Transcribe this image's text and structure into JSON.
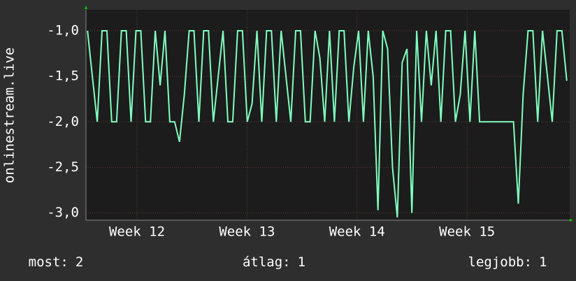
{
  "chart_data": {
    "type": "line",
    "y_label": "onlinestream.live",
    "x": [
      11.55,
      11.594,
      11.638,
      11.682,
      11.726,
      11.77,
      11.814,
      11.858,
      11.902,
      11.946,
      11.99,
      12.034,
      12.078,
      12.122,
      12.166,
      12.21,
      12.254,
      12.298,
      12.342,
      12.386,
      12.43,
      12.474,
      12.518,
      12.562,
      12.606,
      12.65,
      12.694,
      12.738,
      12.782,
      12.826,
      12.87,
      12.914,
      12.958,
      13.002,
      13.046,
      13.09,
      13.134,
      13.178,
      13.222,
      13.266,
      13.31,
      13.354,
      13.398,
      13.442,
      13.486,
      13.53,
      13.574,
      13.618,
      13.662,
      13.706,
      13.75,
      13.794,
      13.838,
      13.882,
      13.926,
      13.97,
      14.014,
      14.058,
      14.102,
      14.146,
      14.19,
      14.234,
      14.278,
      14.322,
      14.366,
      14.41,
      14.454,
      14.498,
      14.542,
      14.586,
      14.63,
      14.674,
      14.718,
      14.762,
      14.806,
      14.85,
      14.894,
      14.938,
      14.982,
      15.026,
      15.07,
      15.114,
      15.158,
      15.202,
      15.246,
      15.29,
      15.334,
      15.378,
      15.422,
      15.466,
      15.51,
      15.554,
      15.598,
      15.642,
      15.686,
      15.73,
      15.774,
      15.818,
      15.862,
      15.906
    ],
    "series": [
      {
        "color": "#80ffc0",
        "values": [
          -1,
          -1.5,
          -2,
          -1,
          -1,
          -2,
          -2,
          -1,
          -1,
          -2,
          -1,
          -1,
          -2,
          -2,
          -1,
          -1.6,
          -1,
          -2,
          -2,
          -2.22,
          -1.7,
          -1,
          -1,
          -2,
          -1,
          -1,
          -2,
          -1.5,
          -1,
          -2,
          -2,
          -1,
          -1,
          -2,
          -1.8,
          -1,
          -2,
          -1,
          -1,
          -2,
          -1,
          -1.5,
          -2,
          -1,
          -1,
          -2,
          -2,
          -1,
          -1.3,
          -2,
          -1,
          -2,
          -1,
          -1,
          -2,
          -1.4,
          -1,
          -2,
          -1,
          -1.5,
          -2.97,
          -1,
          -1.2,
          -2.5,
          -3.05,
          -1.35,
          -1.2,
          -3.0,
          -1,
          -2,
          -1,
          -1.6,
          -1,
          -2,
          -1,
          -1,
          -2,
          -1.7,
          -1,
          -2,
          -1,
          -2,
          -2,
          -2,
          -2,
          -2,
          -2,
          -2,
          -2,
          -2.9,
          -1.7,
          -1,
          -1,
          -2,
          -1,
          -1.5,
          -2,
          -1,
          -1,
          -1.55
        ]
      }
    ],
    "xlim": [
      11.536,
      15.933
    ],
    "ylim": [
      -3.08,
      -0.77
    ],
    "xticks": [
      {
        "value": 12,
        "label": "Week 12"
      },
      {
        "value": 13,
        "label": "Week 13"
      },
      {
        "value": 14,
        "label": "Week 14"
      },
      {
        "value": 15,
        "label": "Week 15"
      }
    ],
    "yticks": [
      {
        "value": -1,
        "label": "-1,0"
      },
      {
        "value": -1.5,
        "label": "-1,5"
      },
      {
        "value": -2,
        "label": "-2,0"
      },
      {
        "value": -2.5,
        "label": "-2,5"
      },
      {
        "value": -3,
        "label": "-3,0"
      }
    ],
    "grid": true,
    "stats": [
      {
        "label": "most:",
        "value": 2
      },
      {
        "label": "átlag:",
        "value": 1
      },
      {
        "label": "legjobb:",
        "value": 1
      }
    ]
  }
}
